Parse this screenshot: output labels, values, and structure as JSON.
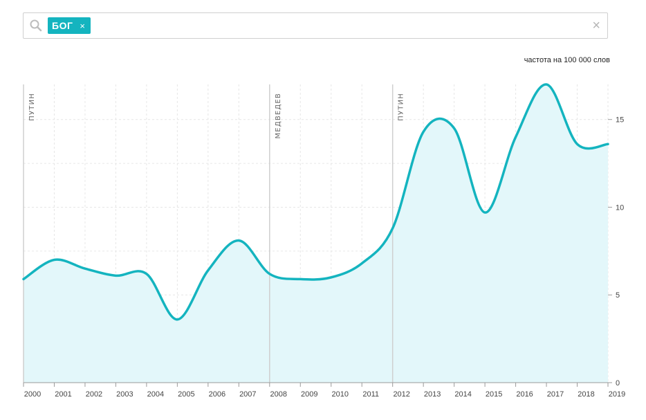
{
  "search": {
    "chip_label": "БОГ",
    "chip_remove": "×",
    "clear": "×",
    "icon": "search-icon"
  },
  "colors": {
    "line": "#14b4bf",
    "area": "#e3f7fa",
    "grid": "#e6e6e6",
    "era_line": "#cfcfcf"
  },
  "chart_data": {
    "type": "area",
    "ylabel": "частота на 100 000 слов",
    "ylim": [
      0,
      17
    ],
    "y_ticks": [
      "0",
      "5",
      "10",
      "15"
    ],
    "y_tick_values": [
      0,
      5,
      10,
      15
    ],
    "grid": true,
    "x_tick_labels": [
      "2000",
      "2001",
      "2002",
      "2003",
      "2004",
      "2005",
      "2006",
      "2007",
      "2008",
      "2009",
      "2010",
      "2011",
      "2012",
      "2013",
      "2014",
      "2015",
      "2016",
      "2017",
      "2018",
      "2019"
    ],
    "series": [
      {
        "values": [
          {
            "x": 2000.0,
            "y": 5.9
          },
          {
            "x": 2001.0,
            "y": 7.0
          },
          {
            "x": 2002.0,
            "y": 6.5
          },
          {
            "x": 2003.0,
            "y": 6.1
          },
          {
            "x": 2004.0,
            "y": 6.2
          },
          {
            "x": 2005.0,
            "y": 3.6
          },
          {
            "x": 2006.0,
            "y": 6.4
          },
          {
            "x": 2007.0,
            "y": 8.1
          },
          {
            "x": 2008.0,
            "y": 6.2
          },
          {
            "x": 2009.0,
            "y": 5.9
          },
          {
            "x": 2010.0,
            "y": 6.0
          },
          {
            "x": 2011.0,
            "y": 6.8
          },
          {
            "x": 2012.0,
            "y": 8.8
          },
          {
            "x": 2013.0,
            "y": 14.3
          },
          {
            "x": 2014.0,
            "y": 14.5
          },
          {
            "x": 2015.0,
            "y": 9.7
          },
          {
            "x": 2016.0,
            "y": 14.0
          },
          {
            "x": 2017.0,
            "y": 17.0
          },
          {
            "x": 2018.0,
            "y": 13.6
          },
          {
            "x": 2019.0,
            "y": 13.6
          }
        ]
      }
    ],
    "annotations": [
      {
        "label": "ПУТИН",
        "x": 2000.0
      },
      {
        "label": "МЕДВЕДЕВ",
        "x": 2008.0
      },
      {
        "label": "ПУТИН",
        "x": 2012.0
      }
    ]
  }
}
